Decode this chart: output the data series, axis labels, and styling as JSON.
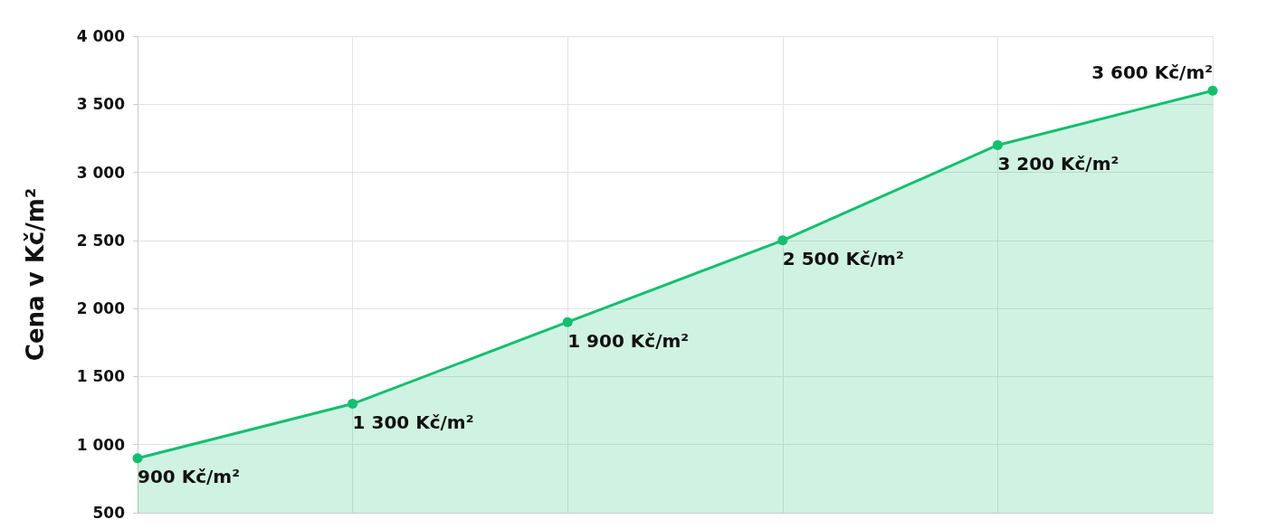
{
  "chart_data": {
    "type": "area",
    "ylabel": "Cena v Kč/m²",
    "categories": [
      null,
      null,
      null,
      null,
      null,
      null
    ],
    "series": [
      {
        "color": "#13bf6f",
        "values": [
          900,
          1300,
          1900,
          2500,
          3200,
          3600
        ],
        "value_labels": [
          "900 Kč/m²",
          "1 300 Kč/m²",
          "1 900 Kč/m²",
          "2 500 Kč/m²",
          "3 200 Kč/m²",
          "3 600 Kč/m²"
        ]
      }
    ],
    "ylim": [
      500,
      4000
    ],
    "yticks": [
      {
        "value": 500,
        "label": "500"
      },
      {
        "value": 1000,
        "label": "1 000"
      },
      {
        "value": 1500,
        "label": "1 500"
      },
      {
        "value": 2000,
        "label": "2 000"
      },
      {
        "value": 2500,
        "label": "2 500"
      },
      {
        "value": 3000,
        "label": "3 000"
      },
      {
        "value": 3500,
        "label": "3 500"
      },
      {
        "value": 4000,
        "label": "4 000"
      }
    ],
    "grid": true,
    "marker": "circle",
    "tick_labels": "y"
  }
}
